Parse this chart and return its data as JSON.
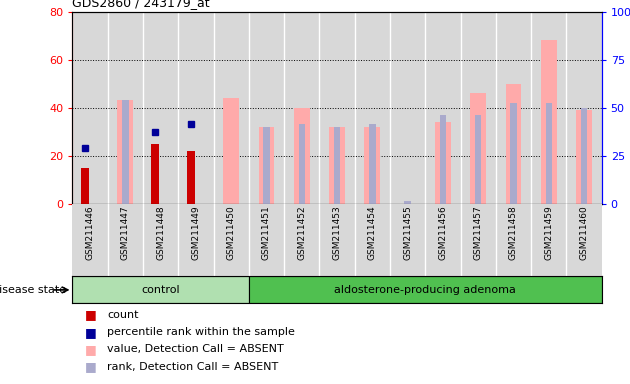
{
  "title": "GDS2860 / 243179_at",
  "samples": [
    "GSM211446",
    "GSM211447",
    "GSM211448",
    "GSM211449",
    "GSM211450",
    "GSM211451",
    "GSM211452",
    "GSM211453",
    "GSM211454",
    "GSM211455",
    "GSM211456",
    "GSM211457",
    "GSM211458",
    "GSM211459",
    "GSM211460"
  ],
  "count_values": [
    15,
    0,
    25,
    22,
    0,
    0,
    0,
    0,
    0,
    0,
    0,
    0,
    0,
    0,
    0
  ],
  "percentile_rank": [
    23,
    0,
    30,
    33,
    0,
    0,
    0,
    0,
    0,
    0,
    0,
    0,
    0,
    0,
    0
  ],
  "value_absent": [
    0,
    43,
    0,
    0,
    44,
    32,
    40,
    32,
    32,
    0,
    34,
    46,
    50,
    68,
    39
  ],
  "rank_absent": [
    0,
    43,
    0,
    0,
    0,
    32,
    33,
    32,
    33,
    1,
    37,
    37,
    42,
    42,
    40
  ],
  "n_control": 5,
  "n_adenoma": 10,
  "left_ylim": [
    0,
    80
  ],
  "right_ylim": [
    0,
    100
  ],
  "left_yticks": [
    0,
    20,
    40,
    60,
    80
  ],
  "right_yticks": [
    0,
    25,
    50,
    75,
    100
  ],
  "color_count": "#cc0000",
  "color_percentile": "#000099",
  "color_value_absent": "#ffaaaa",
  "color_rank_absent": "#aaaacc",
  "color_bg_control": "#b0e0b0",
  "color_bg_adenoma": "#50c050",
  "legend_items": [
    "count",
    "percentile rank within the sample",
    "value, Detection Call = ABSENT",
    "rank, Detection Call = ABSENT"
  ]
}
